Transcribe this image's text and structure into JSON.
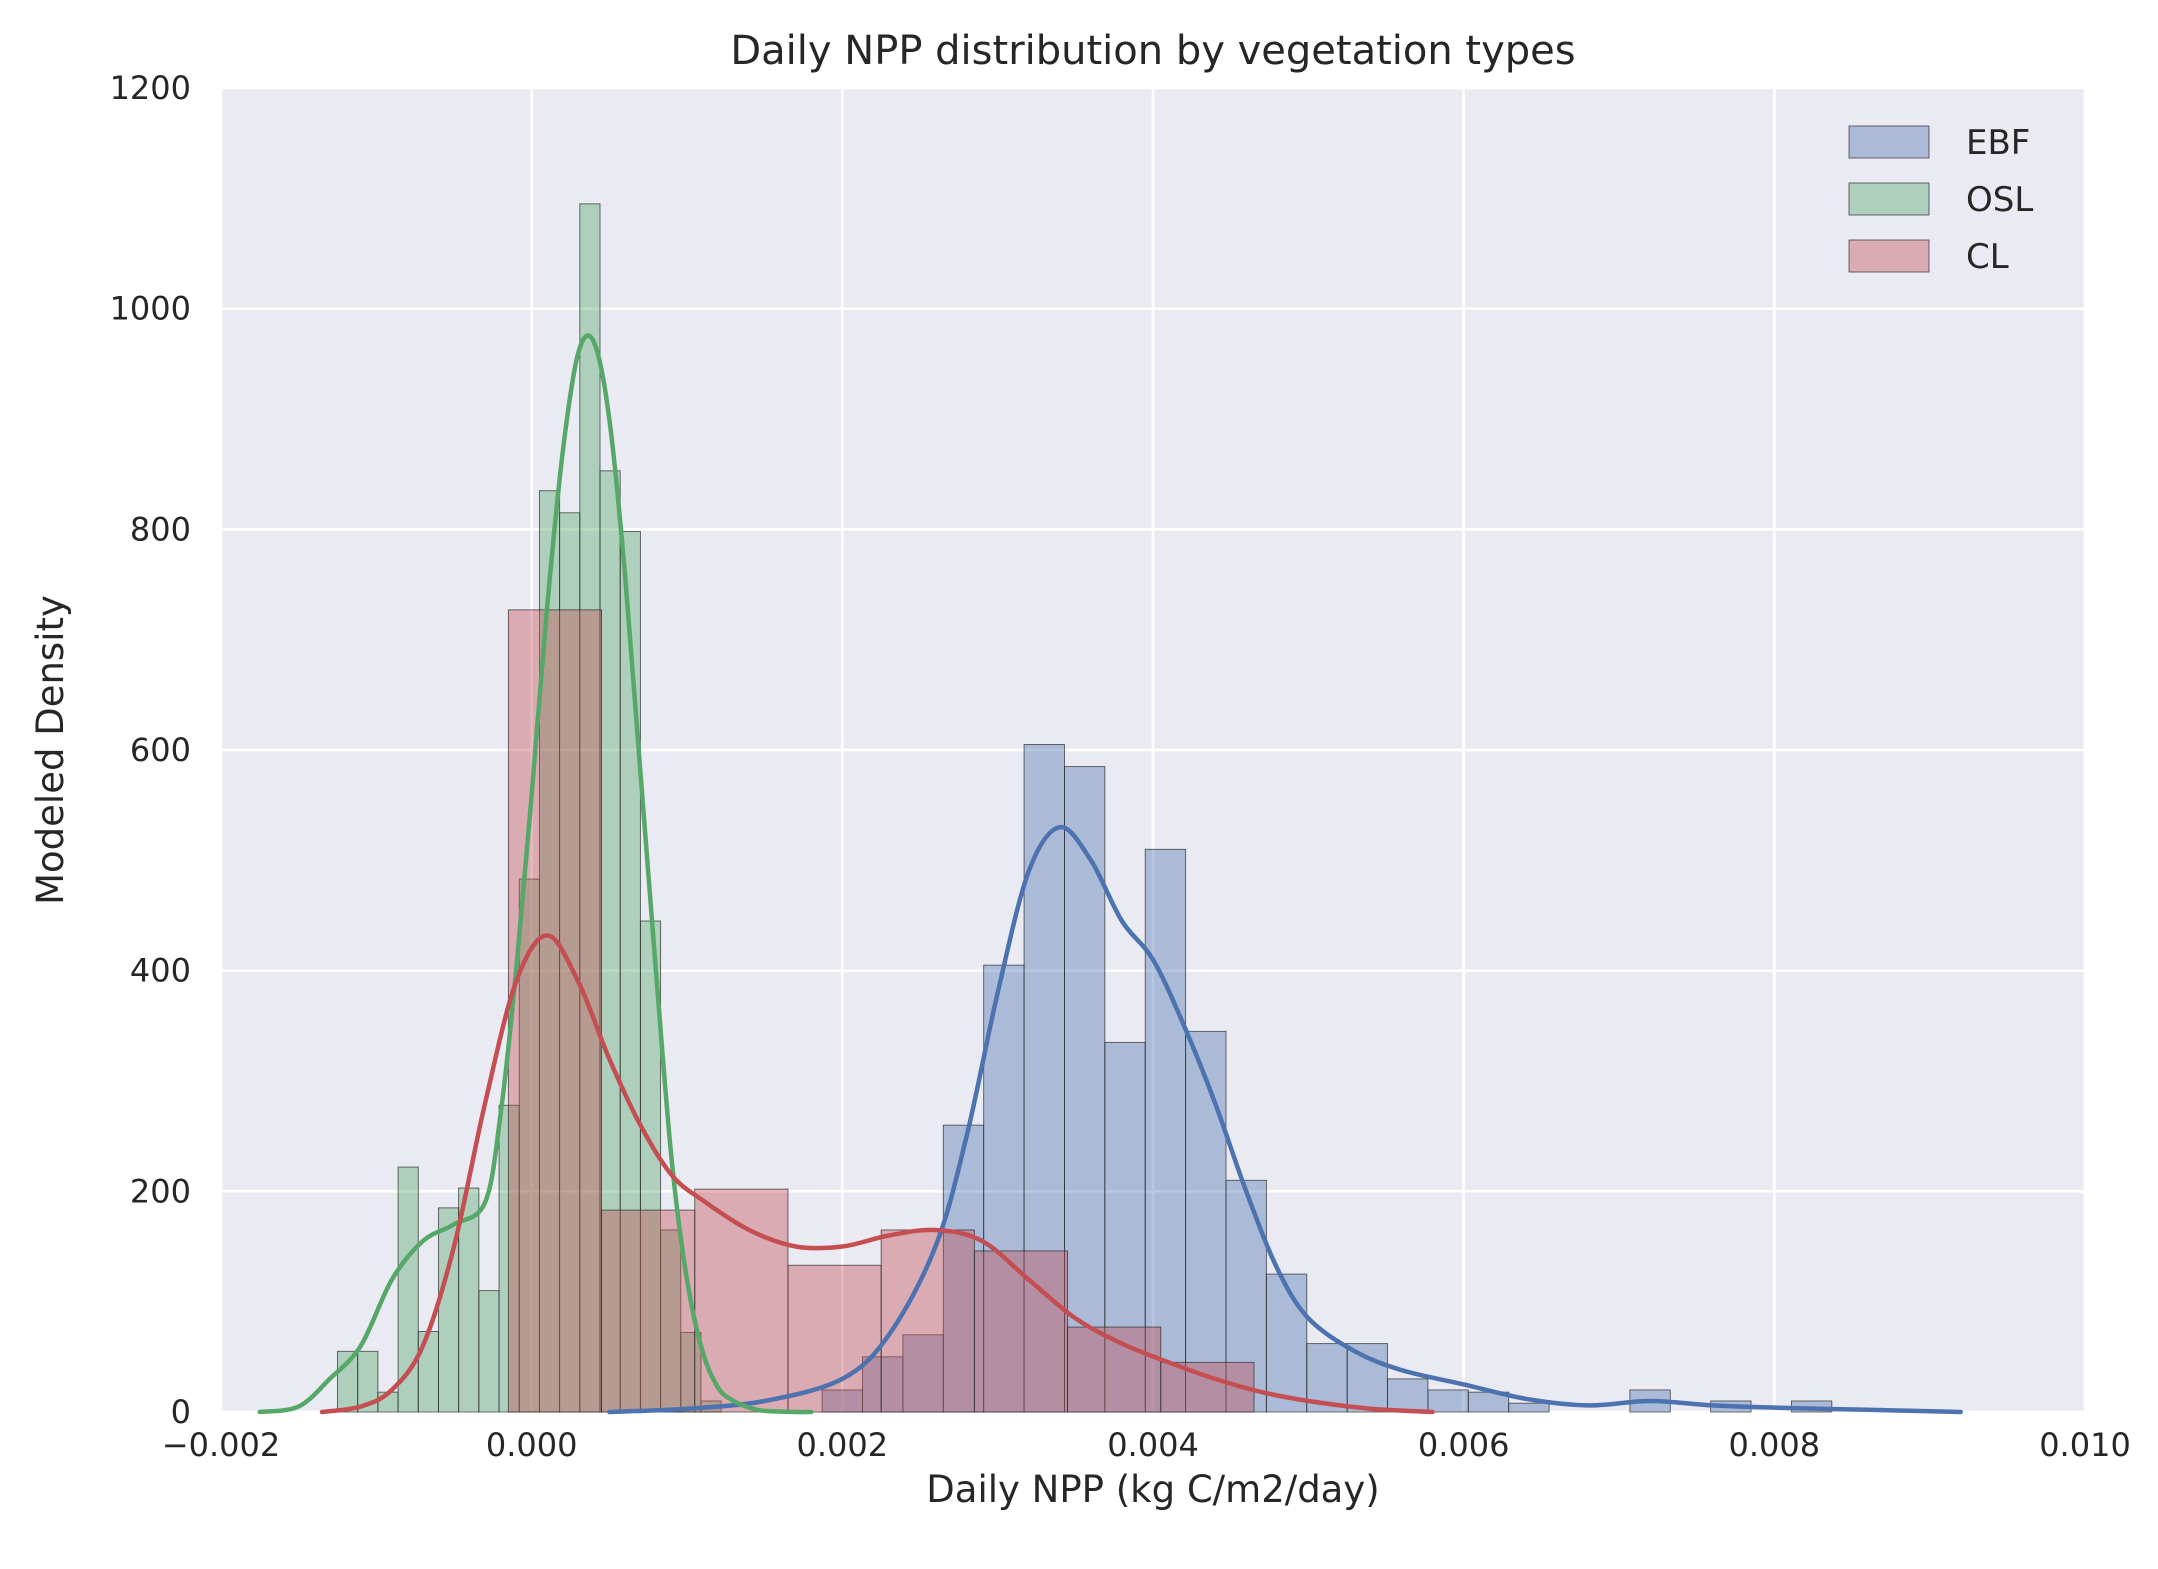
{
  "chart_data": {
    "type": "histogram",
    "title": "Daily NPP distribution by vegetation types",
    "xlabel": "Daily NPP (kg C/m2/day)",
    "ylabel": "Modeled Density",
    "xlim": [
      -0.002,
      0.01
    ],
    "ylim": [
      0,
      1200
    ],
    "xticks": [
      -0.002,
      0.0,
      0.002,
      0.004,
      0.006,
      0.008,
      0.01
    ],
    "xtick_labels": [
      "−0.002",
      "0.000",
      "0.002",
      "0.004",
      "0.006",
      "0.008",
      "0.010"
    ],
    "yticks": [
      0,
      200,
      400,
      600,
      800,
      1000,
      1200
    ],
    "ytick_labels": [
      "0",
      "200",
      "400",
      "600",
      "800",
      "1000",
      "1200"
    ],
    "grid": true,
    "legend_position": "top-right",
    "series": [
      {
        "name": "EBF",
        "color": "#4c72b0",
        "bins": [
          {
            "x0": 0.00187,
            "x1": 0.00213,
            "y": 20
          },
          {
            "x0": 0.00213,
            "x1": 0.00239,
            "y": 50
          },
          {
            "x0": 0.00239,
            "x1": 0.00265,
            "y": 70
          },
          {
            "x0": 0.00265,
            "x1": 0.00291,
            "y": 260
          },
          {
            "x0": 0.00291,
            "x1": 0.00317,
            "y": 405
          },
          {
            "x0": 0.00317,
            "x1": 0.00343,
            "y": 605
          },
          {
            "x0": 0.00343,
            "x1": 0.00369,
            "y": 585
          },
          {
            "x0": 0.00369,
            "x1": 0.00395,
            "y": 335
          },
          {
            "x0": 0.00395,
            "x1": 0.00421,
            "y": 510
          },
          {
            "x0": 0.00421,
            "x1": 0.00447,
            "y": 345
          },
          {
            "x0": 0.00447,
            "x1": 0.00473,
            "y": 210
          },
          {
            "x0": 0.00473,
            "x1": 0.00499,
            "y": 125
          },
          {
            "x0": 0.00499,
            "x1": 0.00525,
            "y": 62
          },
          {
            "x0": 0.00525,
            "x1": 0.00551,
            "y": 62
          },
          {
            "x0": 0.00551,
            "x1": 0.00577,
            "y": 30
          },
          {
            "x0": 0.00577,
            "x1": 0.00603,
            "y": 20
          },
          {
            "x0": 0.00603,
            "x1": 0.00629,
            "y": 18
          },
          {
            "x0": 0.00629,
            "x1": 0.00655,
            "y": 8
          },
          {
            "x0": 0.00707,
            "x1": 0.00733,
            "y": 20
          },
          {
            "x0": 0.00759,
            "x1": 0.00785,
            "y": 10
          },
          {
            "x0": 0.00811,
            "x1": 0.00837,
            "y": 10
          }
        ],
        "kde_x": [
          0.0005,
          0.001,
          0.0015,
          0.002,
          0.0023,
          0.0026,
          0.0028,
          0.003,
          0.0032,
          0.0034,
          0.0036,
          0.0038,
          0.004,
          0.0042,
          0.0044,
          0.0046,
          0.0048,
          0.005,
          0.0053,
          0.0056,
          0.006,
          0.0064,
          0.0068,
          0.0072,
          0.0076,
          0.008,
          0.0086,
          0.0092
        ],
        "kde_y": [
          0,
          3,
          10,
          30,
          70,
          150,
          250,
          380,
          490,
          530,
          500,
          445,
          410,
          350,
          280,
          200,
          130,
          85,
          55,
          38,
          25,
          12,
          6,
          10,
          6,
          4,
          2,
          0
        ]
      },
      {
        "name": "OSL",
        "color": "#55a868",
        "bins": [
          {
            "x0": -0.00125,
            "x1": -0.00112,
            "y": 55
          },
          {
            "x0": -0.00112,
            "x1": -0.00099,
            "y": 55
          },
          {
            "x0": -0.00099,
            "x1": -0.00086,
            "y": 18
          },
          {
            "x0": -0.00086,
            "x1": -0.00073,
            "y": 222
          },
          {
            "x0": -0.00073,
            "x1": -0.0006,
            "y": 73
          },
          {
            "x0": -0.0006,
            "x1": -0.00047,
            "y": 185
          },
          {
            "x0": -0.00047,
            "x1": -0.00034,
            "y": 203
          },
          {
            "x0": -0.00034,
            "x1": -0.00021,
            "y": 110
          },
          {
            "x0": -0.00021,
            "x1": -8e-05,
            "y": 278
          },
          {
            "x0": -8e-05,
            "x1": 5e-05,
            "y": 483
          },
          {
            "x0": 5e-05,
            "x1": 0.00018,
            "y": 835
          },
          {
            "x0": 0.00018,
            "x1": 0.00031,
            "y": 815
          },
          {
            "x0": 0.00031,
            "x1": 0.00044,
            "y": 1095
          },
          {
            "x0": 0.00044,
            "x1": 0.00057,
            "y": 853
          },
          {
            "x0": 0.00057,
            "x1": 0.0007,
            "y": 798
          },
          {
            "x0": 0.0007,
            "x1": 0.00083,
            "y": 445
          },
          {
            "x0": 0.00083,
            "x1": 0.00096,
            "y": 165
          },
          {
            "x0": 0.00096,
            "x1": 0.00109,
            "y": 72
          },
          {
            "x0": 0.00109,
            "x1": 0.00122,
            "y": 10
          }
        ],
        "kde_x": [
          -0.00175,
          -0.0015,
          -0.0013,
          -0.0011,
          -0.0009,
          -0.0007,
          -0.0005,
          -0.0003,
          -0.0002,
          -0.0001,
          0.0,
          0.0001,
          0.0002,
          0.0003,
          0.0004,
          0.0005,
          0.0006,
          0.0007,
          0.0008,
          0.0009,
          0.001,
          0.0011,
          0.0012,
          0.0013,
          0.0014,
          0.0015,
          0.0017,
          0.0018
        ],
        "kde_y": [
          0,
          5,
          30,
          60,
          120,
          155,
          170,
          190,
          270,
          400,
          560,
          730,
          870,
          960,
          970,
          900,
          760,
          580,
          400,
          230,
          120,
          55,
          22,
          10,
          4,
          1,
          0,
          0
        ]
      },
      {
        "name": "CL",
        "color": "#c44e52",
        "bins": [
          {
            "x0": -0.00015,
            "x1": 0.00045,
            "y": 727
          },
          {
            "x0": 0.00045,
            "x1": 0.00105,
            "y": 183
          },
          {
            "x0": 0.00105,
            "x1": 0.00165,
            "y": 202
          },
          {
            "x0": 0.00165,
            "x1": 0.00225,
            "y": 133
          },
          {
            "x0": 0.00225,
            "x1": 0.00285,
            "y": 165
          },
          {
            "x0": 0.00285,
            "x1": 0.00345,
            "y": 146
          },
          {
            "x0": 0.00345,
            "x1": 0.00405,
            "y": 77
          },
          {
            "x0": 0.00405,
            "x1": 0.00465,
            "y": 45
          }
        ],
        "kde_x": [
          -0.00135,
          -0.0011,
          -0.0009,
          -0.0007,
          -0.0005,
          -0.0003,
          -0.0001,
          0.0001,
          0.0003,
          0.0005,
          0.0007,
          0.0009,
          0.0011,
          0.0014,
          0.0017,
          0.002,
          0.0023,
          0.0026,
          0.0029,
          0.0032,
          0.0035,
          0.0038,
          0.0041,
          0.0044,
          0.0047,
          0.005,
          0.0054,
          0.0058
        ],
        "kde_y": [
          0,
          5,
          20,
          60,
          150,
          280,
          390,
          432,
          390,
          320,
          260,
          215,
          192,
          165,
          150,
          150,
          160,
          165,
          155,
          120,
          85,
          62,
          45,
          30,
          18,
          10,
          3,
          0
        ]
      }
    ]
  }
}
